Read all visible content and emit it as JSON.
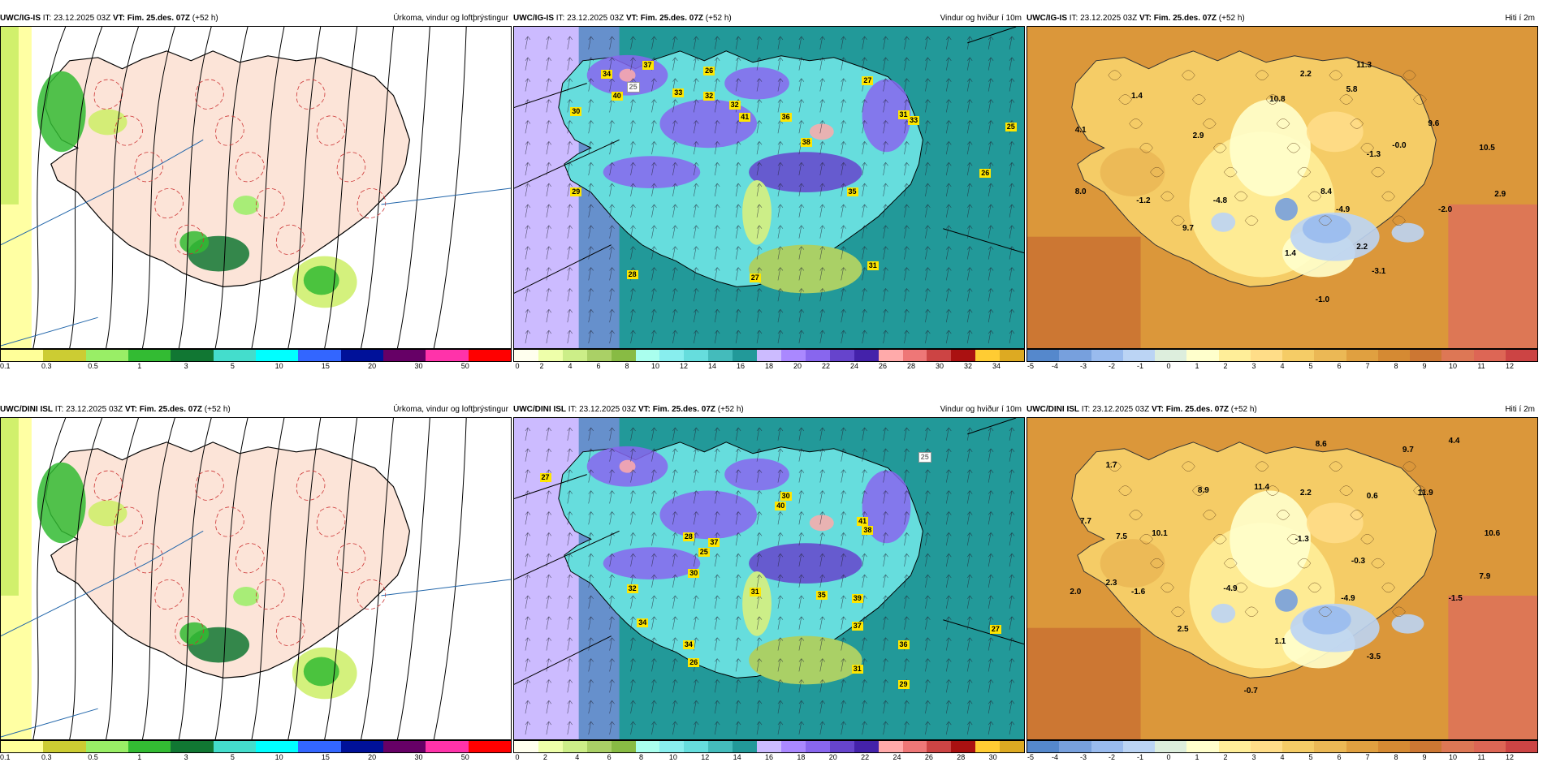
{
  "colors": {
    "precip": [
      "#ffff99",
      "#cccc33",
      "#99ee66",
      "#33bb33",
      "#117733",
      "#44ddcc",
      "#00ffff",
      "#3366ff",
      "#001199",
      "#660066",
      "#ff33aa",
      "#ff0000"
    ],
    "wind": [
      "#ffffee",
      "#eeffaa",
      "#ccee88",
      "#aad066",
      "#88bb44",
      "#aaffee",
      "#88eeee",
      "#66dddd",
      "#44bbbb",
      "#229999",
      "#ccbbff",
      "#aa88ff",
      "#8866ee",
      "#6644cc",
      "#4422aa",
      "#ffaaaa",
      "#ee7777",
      "#cc4444",
      "#aa1111",
      "#ffcc33",
      "#ddaa22"
    ],
    "temp": [
      "#5588cc",
      "#77a0dd",
      "#99bbee",
      "#bbd4f4",
      "#ddeedd",
      "#ffffcc",
      "#ffee99",
      "#ffdd88",
      "#f5cc66",
      "#ebb855",
      "#e0a040",
      "#d58a33",
      "#cc7733",
      "#dd7755",
      "#dd6655",
      "#cc4444"
    ]
  },
  "panels": [
    {
      "model": "UWC/IG-IS",
      "it": "IT: 23.12.2025 03Z",
      "vt_label": "VT:",
      "vt": "Fim. 25.des. 07Z",
      "lead": "(+52 h)",
      "title": "Úrkoma, vindur og loftþrýstingur",
      "type": "precip",
      "ticks": [
        "0.1",
        "0.3",
        "0.5",
        "1",
        "3",
        "5",
        "10",
        "15",
        "20",
        "30",
        "50"
      ]
    },
    {
      "model": "UWC/IG-IS",
      "it": "IT: 23.12.2025 03Z",
      "vt_label": "VT:",
      "vt": "Fim. 25.des. 07Z",
      "lead": "(+52 h)",
      "title": "Vindur og hviður í 10m",
      "type": "wind",
      "ticks": [
        "0",
        "2",
        "4",
        "6",
        "8",
        "10",
        "12",
        "14",
        "16",
        "18",
        "20",
        "22",
        "24",
        "26",
        "28",
        "30",
        "32",
        "34"
      ],
      "labels": [
        {
          "t": "34",
          "c": "yel"
        },
        {
          "t": "37",
          "c": "yel"
        },
        {
          "t": "40",
          "c": "yel"
        },
        {
          "t": "33",
          "c": "yel"
        },
        {
          "t": "26",
          "c": "yel"
        },
        {
          "t": "32",
          "c": "yel"
        },
        {
          "t": "25",
          "c": "wht"
        },
        {
          "t": "30",
          "c": "yel"
        },
        {
          "t": "32",
          "c": "yel"
        },
        {
          "t": "36",
          "c": "yel"
        },
        {
          "t": "41",
          "c": "yel"
        },
        {
          "t": "38",
          "c": "yel"
        },
        {
          "t": "27",
          "c": "yel"
        },
        {
          "t": "31",
          "c": "yel"
        },
        {
          "t": "33",
          "c": "yel"
        },
        {
          "t": "35",
          "c": "yel"
        },
        {
          "t": "29",
          "c": "yel"
        },
        {
          "t": "28",
          "c": "yel"
        },
        {
          "t": "31",
          "c": "yel"
        },
        {
          "t": "27",
          "c": "yel"
        },
        {
          "t": "25",
          "c": "yel"
        },
        {
          "t": "26",
          "c": "yel"
        }
      ]
    },
    {
      "model": "UWC/IG-IS",
      "it": "IT: 23.12.2025 03Z",
      "vt_label": "VT:",
      "vt": "Fim. 25.des. 07Z",
      "lead": "(+52 h)",
      "title": "Hiti í 2m",
      "type": "temp",
      "ticks": [
        "-5",
        "-4",
        "-3",
        "-2",
        "-1",
        "0",
        "1",
        "2",
        "3",
        "4",
        "5",
        "6",
        "7",
        "8",
        "9",
        "10",
        "11",
        "12"
      ],
      "labels": [
        {
          "t": "1.4"
        },
        {
          "t": "4.1"
        },
        {
          "t": "8.4"
        },
        {
          "t": "8.0"
        },
        {
          "t": "2.2"
        },
        {
          "t": "2.9"
        },
        {
          "t": "9.7"
        },
        {
          "t": "10.8"
        },
        {
          "t": "5.8"
        },
        {
          "t": "9.6"
        },
        {
          "t": "2.2"
        },
        {
          "t": "11.3"
        },
        {
          "t": "-1.3"
        },
        {
          "t": "-0.0"
        },
        {
          "t": "10.5"
        },
        {
          "t": "-1.2"
        },
        {
          "t": "-4.8"
        },
        {
          "t": "-4.9"
        },
        {
          "t": "-2.0"
        },
        {
          "t": "2.9"
        },
        {
          "t": "1.4"
        },
        {
          "t": "-3.1"
        },
        {
          "t": "-1.0"
        }
      ]
    },
    {
      "model": "UWC/DINI ISL",
      "it": "IT: 23.12.2025 03Z",
      "vt_label": "VT:",
      "vt": "Fim. 25.des. 07Z",
      "lead": "(+52 h)",
      "title": "Úrkoma, vindur og loftþrýstingur",
      "type": "precip",
      "ticks": [
        "0.1",
        "0.3",
        "0.5",
        "1",
        "3",
        "5",
        "10",
        "15",
        "20",
        "30",
        "50"
      ]
    },
    {
      "model": "UWC/DINI ISL",
      "it": "IT: 23.12.2025 03Z",
      "vt_label": "VT:",
      "vt": "Fim. 25.des. 07Z",
      "lead": "(+52 h)",
      "title": "Vindur og hviður í 10m",
      "type": "wind",
      "ticks": [
        "0",
        "2",
        "4",
        "6",
        "8",
        "10",
        "12",
        "14",
        "16",
        "18",
        "20",
        "22",
        "24",
        "26",
        "28",
        "30"
      ],
      "labels": [
        {
          "t": "27",
          "c": "yel"
        },
        {
          "t": "25",
          "c": "wht"
        },
        {
          "t": "30",
          "c": "yel"
        },
        {
          "t": "37",
          "c": "yel"
        },
        {
          "t": "28",
          "c": "yel"
        },
        {
          "t": "32",
          "c": "yel"
        },
        {
          "t": "34",
          "c": "yel"
        },
        {
          "t": "25",
          "c": "yel"
        },
        {
          "t": "30",
          "c": "yel"
        },
        {
          "t": "40",
          "c": "yel"
        },
        {
          "t": "31",
          "c": "yel"
        },
        {
          "t": "41",
          "c": "yel"
        },
        {
          "t": "38",
          "c": "yel"
        },
        {
          "t": "35",
          "c": "yel"
        },
        {
          "t": "34",
          "c": "yel"
        },
        {
          "t": "39",
          "c": "yel"
        },
        {
          "t": "37",
          "c": "yel"
        },
        {
          "t": "36",
          "c": "yel"
        },
        {
          "t": "29",
          "c": "yel"
        },
        {
          "t": "26",
          "c": "yel"
        },
        {
          "t": "31",
          "c": "yel"
        },
        {
          "t": "27",
          "c": "yel"
        }
      ]
    },
    {
      "model": "UWC/DINI ISL",
      "it": "IT: 23.12.2025 03Z",
      "vt_label": "VT:",
      "vt": "Fim. 25.des. 07Z",
      "lead": "(+52 h)",
      "title": "Hiti í 2m",
      "type": "temp",
      "ticks": [
        "-5",
        "-4",
        "-3",
        "-2",
        "-1",
        "0",
        "1",
        "2",
        "3",
        "4",
        "5",
        "6",
        "7",
        "8",
        "9",
        "10",
        "11",
        "12"
      ],
      "labels": [
        {
          "t": "1.7"
        },
        {
          "t": "7.7"
        },
        {
          "t": "7.5"
        },
        {
          "t": "2.0"
        },
        {
          "t": "2.3"
        },
        {
          "t": "10.1"
        },
        {
          "t": "8.9"
        },
        {
          "t": "11.4"
        },
        {
          "t": "8.6"
        },
        {
          "t": "2.2"
        },
        {
          "t": "0.6"
        },
        {
          "t": "9.7"
        },
        {
          "t": "4.4"
        },
        {
          "t": "11.9"
        },
        {
          "t": "10.6"
        },
        {
          "t": "-1.3"
        },
        {
          "t": "-0.3"
        },
        {
          "t": "-1.6"
        },
        {
          "t": "-4.9"
        },
        {
          "t": "-4.9"
        },
        {
          "t": "-1.5"
        },
        {
          "t": "7.9"
        },
        {
          "t": "2.5"
        },
        {
          "t": "1.1"
        },
        {
          "t": "-3.5"
        },
        {
          "t": "-0.7"
        }
      ]
    }
  ]
}
